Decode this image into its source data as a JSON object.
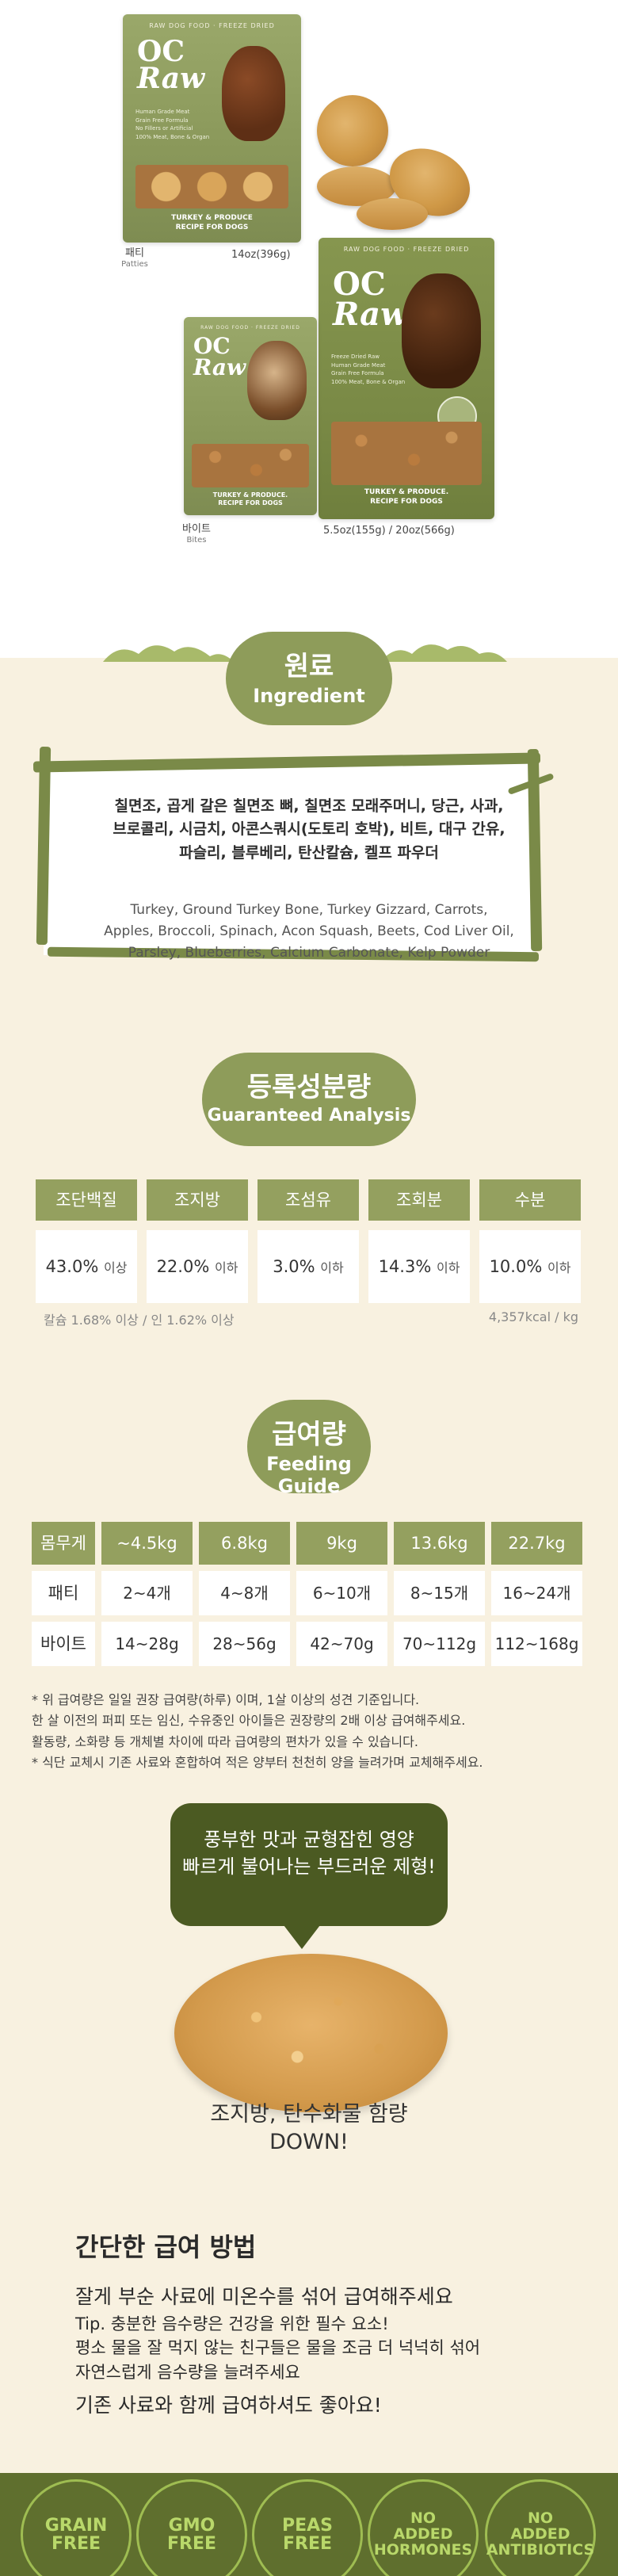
{
  "products": {
    "patties": {
      "brand_small": "RAW DOG FOOD · FREEZE DRIED",
      "logo_line1": "OC",
      "logo_line2": "Raw",
      "recipe_line1": "TURKEY & PRODUCE",
      "recipe_line2": "RECIPE FOR DOGS",
      "bullets": [
        "Human Grade Meat",
        "Grain Free Formula",
        "No Fillers or Artificial",
        "100% Meat, Bone & Organ"
      ],
      "caption_ko": "패티",
      "caption_en": "Patties",
      "size": "14oz(396g)"
    },
    "bites_large": {
      "brand_small": "RAW DOG FOOD · FREEZE DRIED",
      "logo_line1": "OC",
      "logo_line2": "Raw",
      "recipe_line1": "TURKEY & PRODUCE.",
      "recipe_line2": "RECIPE FOR DOGS",
      "bullets": [
        "Freeze Dried Raw",
        "Human Grade Meat",
        "Grain Free Formula",
        "100% Meat, Bone & Organ"
      ]
    },
    "bites_small": {
      "brand_small": "RAW DOG FOOD · FREEZE DRIED",
      "logo_line1": "OC",
      "logo_line2": "Raw",
      "recipe_line1": "TURKEY & PRODUCE.",
      "recipe_line2": "RECIPE FOR DOGS",
      "caption_ko": "바이트",
      "caption_en": "Bites",
      "size": "5.5oz(155g) / 20oz(566g)"
    }
  },
  "ingredient": {
    "title_ko": "원료",
    "title_en": "Ingredient",
    "ko_lines": [
      "칠면조, 곱게 갈은 칠면조 뼈, 칠면조 모래주머니, 당근, 사과,",
      "브로콜리, 시금치, 아콘스쿼시(도토리 호박), 비트, 대구 간유,",
      "파슬리, 블루베리, 탄산칼슘, 켈프 파우더"
    ],
    "en_lines": [
      "Turkey, Ground Turkey Bone, Turkey Gizzard, Carrots,",
      "Apples, Broccoli, Spinach, Acon Squash, Beets, Cod Liver Oil,",
      "Parsley, Blueberries, Calcium Carbonate, Kelp Powder"
    ]
  },
  "analysis": {
    "title_ko": "등록성분량",
    "title_en": "Guaranteed Analysis",
    "headers": [
      "조단백질",
      "조지방",
      "조섬유",
      "조회분",
      "수분"
    ],
    "values": [
      {
        "num": "43.0%",
        "unit": "이상"
      },
      {
        "num": "22.0%",
        "unit": "이하"
      },
      {
        "num": "3.0%",
        "unit": "이하"
      },
      {
        "num": "14.3%",
        "unit": "이하"
      },
      {
        "num": "10.0%",
        "unit": "이하"
      }
    ],
    "footnote_left": "칼슘 1.68% 이상 / 인 1.62% 이상",
    "footnote_right": "4,357kcal / kg"
  },
  "feeding": {
    "title_ko": "급여량",
    "title_en": "Feeding Guide",
    "weight_label": "몸무게",
    "weights": [
      "~4.5kg",
      "6.8kg",
      "9kg",
      "13.6kg",
      "22.7kg"
    ],
    "rows": [
      {
        "label": "패티",
        "values": [
          "2~4개",
          "4~8개",
          "6~10개",
          "8~15개",
          "16~24개"
        ]
      },
      {
        "label": "바이트",
        "values": [
          "14~28g",
          "28~56g",
          "42~70g",
          "70~112g",
          "112~168g"
        ]
      }
    ],
    "notes": [
      "* 위 급여량은 일일 권장 급여량(하루) 이며, 1살 이상의 성견 기준입니다.",
      "한 살 이전의 퍼피 또는 임신, 수유중인 아이들은 권장량의 2배 이상 급여해주세요.",
      "활동량, 소화량 등 개체별 차이에 따라 급여량의 편차가 있을 수 있습니다.",
      "* 식단 교체시 기존 사료와 혼합하여 적은 양부터 천천히 양을 늘려가며 교체해주세요."
    ]
  },
  "promo": {
    "bubble_line1": "풍부한 맛과 균형잡힌 영양",
    "bubble_line2": "빠르게 불어나는 부드러운 제형!",
    "down_line1": "조지방, 탄수화물 함량",
    "down_line2": "DOWN!"
  },
  "method": {
    "title": "간단한 급여 방법",
    "main1": "잘게 부순 사료에 미온수를 섞어 급여해주세요",
    "tip_lines": [
      "Tip. 충분한 음수량은 건강을 위한 필수 요소!",
      "평소 물을 잘 먹지 않는 친구들은 물을 조금 더 넉넉히 섞어",
      "자연스럽게 음수량을 늘려주세요"
    ],
    "main2": "기존 사료와 함께 급여하셔도 좋아요!"
  },
  "badges": [
    {
      "line1": "GRAIN",
      "line2": "FREE"
    },
    {
      "line1": "GMO",
      "line2": "FREE"
    },
    {
      "line1": "PEAS",
      "line2": "FREE"
    },
    {
      "line1": "NO",
      "line2": "ADDED",
      "line3": "HORMONES"
    },
    {
      "line1": "NO",
      "line2": "ADDED",
      "line3": "ANTIBIOTICS"
    }
  ],
  "colors": {
    "olive": "#94a05f",
    "cream": "#f8f1e0",
    "dark_green": "#4b5a22",
    "badge_green": "#5f6f2e"
  }
}
